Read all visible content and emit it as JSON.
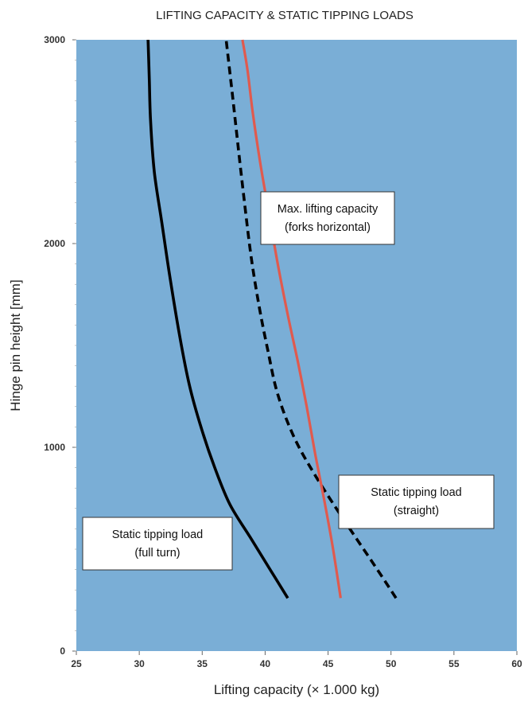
{
  "chart_data": {
    "type": "line",
    "title": "LIFTING CAPACITY & STATIC TIPPING LOADS",
    "xlabel": "Lifting capacity (× 1.000 kg)",
    "ylabel": "Hinge pin height [mm]",
    "xlim": [
      25,
      60
    ],
    "ylim": [
      0,
      3000
    ],
    "x_ticks": [
      25,
      30,
      35,
      40,
      45,
      50,
      55,
      60
    ],
    "y_ticks": [
      0,
      1000,
      2000,
      3000
    ],
    "grid": false,
    "colors": {
      "plot_background": "#7aaed6",
      "full_turn": "#000000",
      "straight": "#000000",
      "max_capacity": "#e05a4e"
    },
    "series": [
      {
        "key": "full_turn",
        "style": "solid",
        "points": [
          [
            41.8,
            260
          ],
          [
            40.5,
            390
          ],
          [
            38.8,
            560
          ],
          [
            37.2,
            720
          ],
          [
            36.0,
            900
          ],
          [
            35.0,
            1080
          ],
          [
            34.0,
            1300
          ],
          [
            33.2,
            1550
          ],
          [
            32.4,
            1850
          ],
          [
            31.8,
            2100
          ],
          [
            31.2,
            2350
          ],
          [
            30.9,
            2600
          ],
          [
            30.8,
            2800
          ],
          [
            30.7,
            3000
          ]
        ]
      },
      {
        "key": "straight",
        "style": "dashed",
        "points": [
          [
            50.4,
            260
          ],
          [
            48.7,
            420
          ],
          [
            46.3,
            640
          ],
          [
            44.0,
            860
          ],
          [
            42.3,
            1050
          ],
          [
            41.0,
            1260
          ],
          [
            40.2,
            1480
          ],
          [
            39.5,
            1700
          ],
          [
            38.9,
            1930
          ],
          [
            38.4,
            2180
          ],
          [
            37.9,
            2450
          ],
          [
            37.4,
            2730
          ],
          [
            36.9,
            3000
          ]
        ]
      },
      {
        "key": "max_capacity",
        "style": "solid",
        "points": [
          [
            46.0,
            260
          ],
          [
            45.4,
            500
          ],
          [
            44.7,
            740
          ],
          [
            44.0,
            960
          ],
          [
            43.3,
            1200
          ],
          [
            42.6,
            1420
          ],
          [
            41.8,
            1650
          ],
          [
            41.0,
            1900
          ],
          [
            40.3,
            2150
          ],
          [
            39.6,
            2400
          ],
          [
            39.0,
            2650
          ],
          [
            38.6,
            2850
          ],
          [
            38.2,
            3000
          ]
        ]
      }
    ],
    "annotations": [
      {
        "key": "max_capacity",
        "lines": [
          "Max. lifting capacity",
          "(forks horizontal)"
        ]
      },
      {
        "key": "straight",
        "lines": [
          "Static tipping load",
          "(straight)"
        ]
      },
      {
        "key": "full_turn",
        "lines": [
          "Static tipping load",
          "(full turn)"
        ]
      }
    ]
  }
}
